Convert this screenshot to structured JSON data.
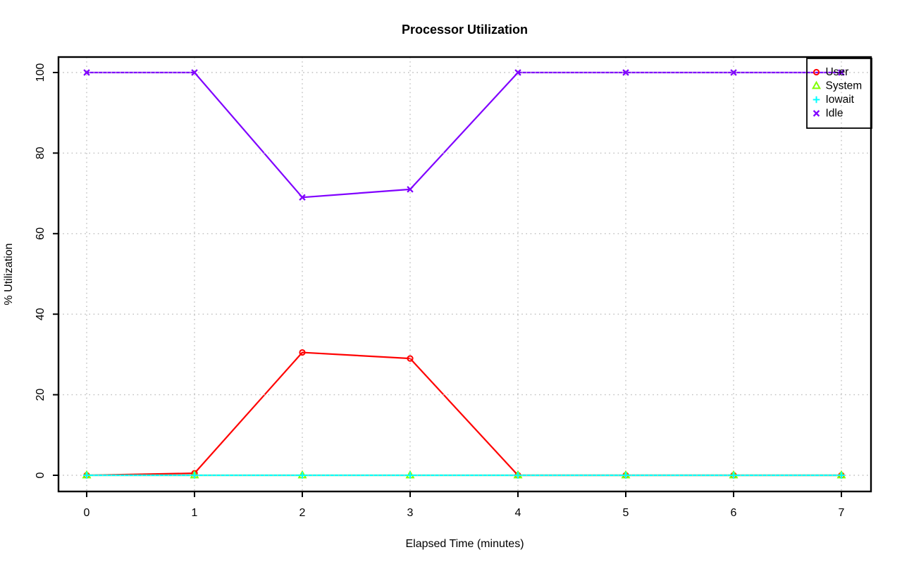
{
  "chart_data": {
    "type": "line",
    "title": "Processor Utilization",
    "xlabel": "Elapsed Time (minutes)",
    "ylabel": "% Utilization",
    "x": [
      0,
      1,
      2,
      3,
      4,
      5,
      6,
      7
    ],
    "xlim": [
      0,
      7
    ],
    "ylim": [
      0,
      100
    ],
    "x_ticks": [
      0,
      1,
      2,
      3,
      4,
      5,
      6,
      7
    ],
    "x_tick_labels": [
      "0",
      "1",
      "2",
      "3",
      "4",
      "5",
      "6",
      "7"
    ],
    "y_ticks": [
      0,
      20,
      40,
      60,
      80,
      100
    ],
    "y_tick_labels": [
      "0",
      "20",
      "40",
      "60",
      "80",
      "100"
    ],
    "grid": "dotted",
    "grid_color": "#bfbfbf",
    "legend_position": "topright",
    "background": "#ffffff",
    "axis_color": "#000000",
    "series": [
      {
        "name": "User",
        "color": "#ff0000",
        "marker": "circle",
        "values": [
          0,
          0.5,
          30.5,
          29,
          0,
          0,
          0,
          0
        ]
      },
      {
        "name": "System",
        "color": "#80ff00",
        "marker": "triangle",
        "values": [
          0,
          0,
          0,
          0,
          0,
          0,
          0,
          0
        ]
      },
      {
        "name": "Iowait",
        "color": "#00ffff",
        "marker": "plus",
        "values": [
          0,
          0,
          0,
          0,
          0,
          0,
          0,
          0
        ]
      },
      {
        "name": "Idle",
        "color": "#8000ff",
        "marker": "x",
        "values": [
          100,
          100,
          69,
          71,
          100,
          100,
          100,
          100
        ]
      }
    ]
  }
}
